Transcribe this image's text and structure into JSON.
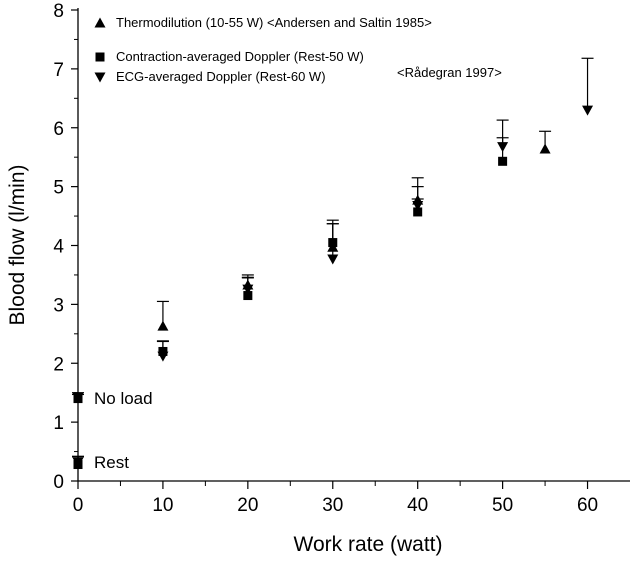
{
  "chart_data": {
    "type": "scatter",
    "xlabel": "Work rate (watt)",
    "ylabel": "Blood flow (l/min)",
    "xlim": [
      0,
      65
    ],
    "ylim": [
      0,
      8
    ],
    "x_ticks": [
      0,
      10,
      20,
      30,
      40,
      50,
      60
    ],
    "y_ticks": [
      0,
      1,
      2,
      3,
      4,
      5,
      6,
      7,
      8
    ],
    "grid": false,
    "legend_position": "top-left",
    "series": [
      {
        "name": "Thermodilution (10-55 W) <Andersen and Saltin 1985>",
        "marker": "triangle-up",
        "points": [
          {
            "x": 10,
            "y": 2.63,
            "err": 0.42
          },
          {
            "x": 20,
            "y": 3.33,
            "err": 0.17
          },
          {
            "x": 30,
            "y": 3.97,
            "err": 0.4
          },
          {
            "x": 40,
            "y": 4.77,
            "err": 0.38
          },
          {
            "x": 55,
            "y": 5.64,
            "err": 0.3
          }
        ]
      },
      {
        "name": "Contraction-averaged Doppler (Rest-50 W)",
        "marker": "square",
        "points": [
          {
            "x": 0,
            "y": 0.28,
            "err": 0.13
          },
          {
            "x": 0,
            "y": 1.4,
            "err": 0.1
          },
          {
            "x": 10,
            "y": 2.2,
            "err": 0.18
          },
          {
            "x": 20,
            "y": 3.15,
            "err": 0.3
          },
          {
            "x": 30,
            "y": 4.05,
            "err": 0.38
          },
          {
            "x": 40,
            "y": 4.57,
            "err": 0.22
          },
          {
            "x": 50,
            "y": 5.43,
            "err": 0.4
          }
        ]
      },
      {
        "name": "ECG-averaged Doppler (Rest-60 W)",
        "marker": "triangle-down",
        "points": [
          {
            "x": 0,
            "y": 0.32,
            "err": 0.1
          },
          {
            "x": 0,
            "y": 1.42,
            "err": 0.05
          },
          {
            "x": 10,
            "y": 2.12,
            "err": 0.25
          },
          {
            "x": 20,
            "y": 3.26,
            "err": 0.2
          },
          {
            "x": 30,
            "y": 3.77,
            "err": 0.6
          },
          {
            "x": 40,
            "y": 4.68,
            "err": 0.32
          },
          {
            "x": 50,
            "y": 5.68,
            "err": 0.45
          },
          {
            "x": 60,
            "y": 6.3,
            "err": 0.88
          }
        ]
      }
    ],
    "annotations": [
      {
        "text": "<Rådegran 1997>",
        "anchor": "legend-right"
      },
      {
        "text": "No load",
        "near": {
          "x": 0,
          "y": 1.4
        }
      },
      {
        "text": "Rest",
        "near": {
          "x": 0,
          "y": 0.3
        }
      }
    ]
  }
}
